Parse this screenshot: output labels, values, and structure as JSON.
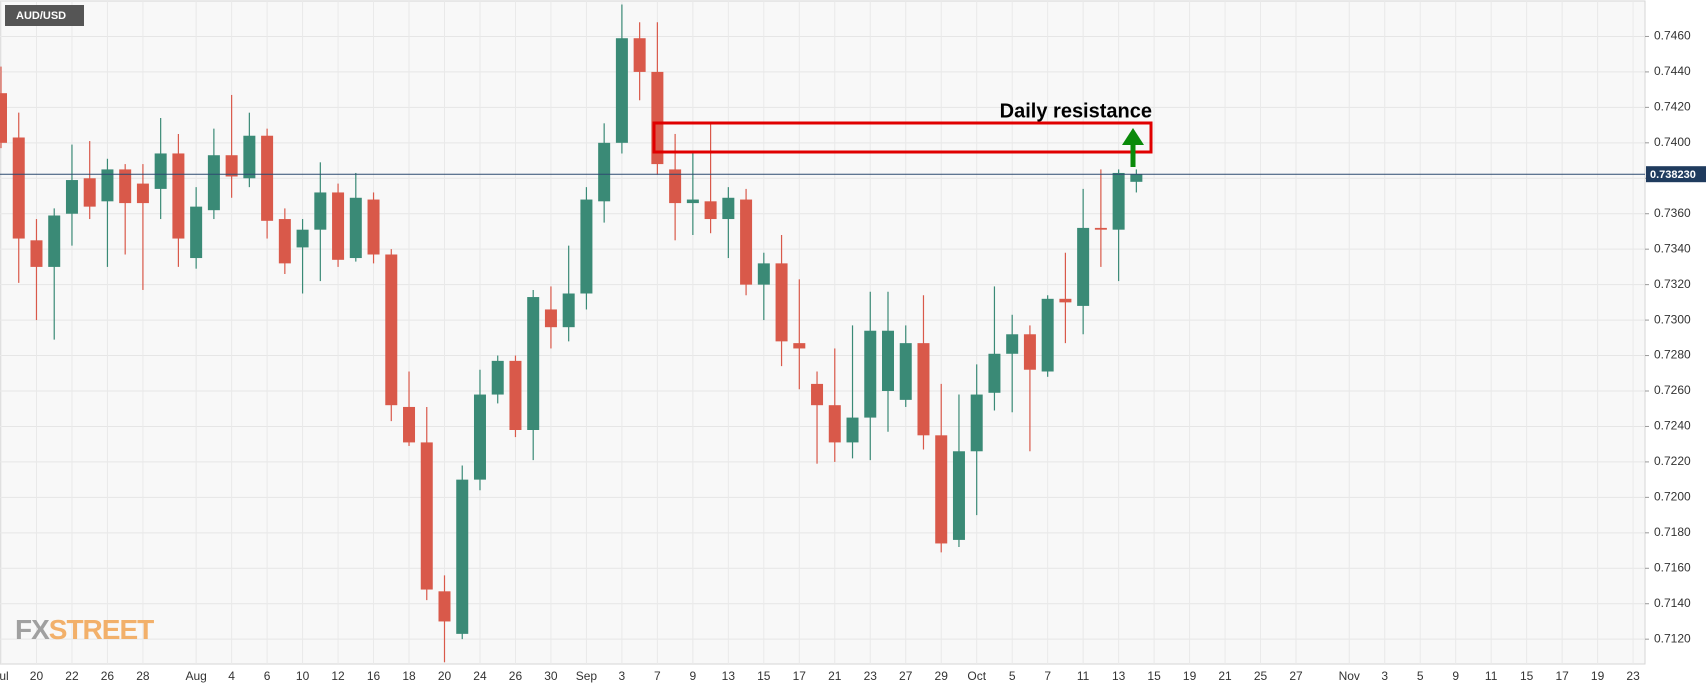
{
  "chart_data": {
    "type": "candlestick",
    "symbol": "AUD/USD",
    "annotation": "Daily resistance",
    "watermark": [
      "FX",
      "STREET"
    ],
    "up_color": "#3a8a76",
    "down_color": "#d9594a",
    "grid": true,
    "categories": [
      "Jul",
      null,
      "20",
      null,
      "22",
      null,
      "26",
      null,
      "28",
      null,
      null,
      "Aug",
      null,
      "4",
      null,
      "6",
      null,
      "10",
      null,
      "12",
      null,
      "16",
      null,
      "18",
      null,
      "20",
      null,
      "24",
      null,
      "26",
      null,
      "30",
      null,
      "Sep",
      null,
      "3",
      null,
      "7",
      null,
      "9",
      null,
      "13",
      null,
      "15",
      null,
      "17",
      null,
      "21",
      null,
      "23",
      null,
      "27",
      null,
      "29",
      null,
      "Oct",
      null,
      "5",
      null,
      "7",
      null,
      "11",
      null,
      "13",
      null,
      "15",
      null,
      "19",
      null,
      "21",
      null,
      "25",
      null,
      "27",
      null,
      null,
      "Nov",
      null,
      "3",
      null,
      "5",
      null,
      "9",
      null,
      "11",
      null,
      "15",
      null,
      "17",
      null,
      "19",
      null,
      "23"
    ],
    "open": [
      0.7428,
      0.7403,
      0.7345,
      0.733,
      0.736,
      0.738,
      0.7367,
      0.7385,
      0.7377,
      0.7374,
      0.7394,
      0.7335,
      0.7362,
      0.7393,
      0.738,
      0.7404,
      0.7357,
      0.7341,
      0.7351,
      0.7372,
      0.7335,
      0.7368,
      0.7337,
      0.7251,
      0.7231,
      0.7147,
      0.7123,
      0.721,
      0.7258,
      0.7277,
      0.7238,
      0.7306,
      0.7296,
      0.7315,
      0.7367,
      0.74,
      0.7459,
      0.744,
      0.7385,
      0.7366,
      0.7367,
      0.7357,
      0.7368,
      0.732,
      0.7332,
      0.7287,
      0.7264,
      0.7252,
      0.7231,
      0.7245,
      0.726,
      0.7255,
      0.7287,
      0.7235,
      0.7176,
      0.7226,
      0.7259,
      0.7281,
      0.7292,
      0.7271,
      0.7312,
      0.7308,
      0.7352,
      0.7351,
      0.7378,
      null,
      null,
      null,
      null,
      null,
      null,
      null,
      null,
      null,
      null,
      null,
      null,
      null,
      null,
      null,
      null,
      null,
      null,
      null,
      null,
      null,
      null,
      null,
      null,
      null,
      null,
      null,
      null
    ],
    "high": [
      0.7443,
      0.7417,
      0.7357,
      0.7363,
      0.7399,
      0.7401,
      0.7391,
      0.7388,
      0.7388,
      0.7414,
      0.7405,
      0.7375,
      0.7408,
      0.7427,
      0.7417,
      0.7408,
      0.7363,
      0.7357,
      0.7389,
      0.7377,
      0.7383,
      0.7372,
      0.734,
      0.7271,
      0.7251,
      0.7156,
      0.7218,
      0.7272,
      0.728,
      0.728,
      0.7317,
      0.7319,
      0.7342,
      0.7375,
      0.7411,
      0.7478,
      0.7468,
      0.7468,
      0.7405,
      0.7394,
      0.7411,
      0.7375,
      0.7374,
      0.7338,
      0.7348,
      0.7323,
      0.7271,
      0.7284,
      0.7297,
      0.7316,
      0.7316,
      0.7297,
      0.7314,
      0.7264,
      0.7258,
      0.7275,
      0.7319,
      0.7303,
      0.7297,
      0.7314,
      0.7338,
      0.7374,
      0.7385,
      0.7385,
      0.7385,
      null,
      null,
      null,
      null,
      null,
      null,
      null,
      null,
      null,
      null,
      null,
      null,
      null,
      null,
      null,
      null,
      null,
      null,
      null,
      null,
      null,
      null,
      null,
      null,
      null,
      null,
      null,
      null
    ],
    "low": [
      0.7397,
      0.7321,
      0.73,
      0.7289,
      0.7342,
      0.7357,
      0.733,
      0.7337,
      0.7317,
      0.7357,
      0.733,
      0.7329,
      0.7357,
      0.7369,
      0.7375,
      0.7346,
      0.7326,
      0.7315,
      0.7322,
      0.733,
      0.7333,
      0.7332,
      0.7243,
      0.7229,
      0.7142,
      0.7107,
      0.712,
      0.7204,
      0.7253,
      0.7234,
      0.7221,
      0.7284,
      0.7288,
      0.7306,
      0.7355,
      0.7394,
      0.7424,
      0.7382,
      0.7345,
      0.7348,
      0.7349,
      0.7335,
      0.7314,
      0.73,
      0.7274,
      0.7261,
      0.7219,
      0.722,
      0.7222,
      0.7221,
      0.7237,
      0.7251,
      0.7227,
      0.7169,
      0.7172,
      0.719,
      0.7249,
      0.7248,
      0.7226,
      0.7268,
      0.7287,
      0.7292,
      0.733,
      0.7322,
      0.7372,
      null,
      null,
      null,
      null,
      null,
      null,
      null,
      null,
      null,
      null,
      null,
      null,
      null,
      null,
      null,
      null,
      null,
      null,
      null,
      null,
      null,
      null,
      null,
      null,
      null,
      null,
      null,
      null
    ],
    "close": [
      0.74,
      0.7346,
      0.733,
      0.7359,
      0.7379,
      0.7364,
      0.7385,
      0.7366,
      0.7366,
      0.7394,
      0.7346,
      0.7364,
      0.7393,
      0.7381,
      0.7404,
      0.7356,
      0.7332,
      0.7351,
      0.7372,
      0.7334,
      0.7369,
      0.7337,
      0.7252,
      0.7231,
      0.7148,
      0.713,
      0.721,
      0.7258,
      0.7277,
      0.7238,
      0.7313,
      0.7296,
      0.7315,
      0.7368,
      0.74,
      0.7459,
      0.744,
      0.7388,
      0.7366,
      0.7368,
      0.7357,
      0.7369,
      0.732,
      0.7332,
      0.7288,
      0.7284,
      0.7252,
      0.7231,
      0.7245,
      0.7294,
      0.7294,
      0.7287,
      0.7235,
      0.7174,
      0.7226,
      0.7258,
      0.7281,
      0.7292,
      0.7272,
      0.7312,
      0.731,
      0.7352,
      0.7351,
      0.7383,
      0.73823,
      null,
      null,
      null,
      null,
      null,
      null,
      null,
      null,
      null,
      null,
      null,
      null,
      null,
      null,
      null,
      null,
      null,
      null,
      null,
      null,
      null,
      null,
      null,
      null,
      null,
      null,
      null,
      null
    ],
    "last_price": {
      "value": 0.73823,
      "label": "0.738230"
    },
    "ylim": [
      0.7106,
      0.748
    ],
    "yticks": [
      {
        "value": 0.712,
        "label": "0.7120"
      },
      {
        "value": 0.714,
        "label": "0.7140"
      },
      {
        "value": 0.716,
        "label": "0.7160"
      },
      {
        "value": 0.718,
        "label": "0.7180"
      },
      {
        "value": 0.72,
        "label": "0.7200"
      },
      {
        "value": 0.722,
        "label": "0.7220"
      },
      {
        "value": 0.724,
        "label": "0.7240"
      },
      {
        "value": 0.726,
        "label": "0.7260"
      },
      {
        "value": 0.728,
        "label": "0.7280"
      },
      {
        "value": 0.73,
        "label": "0.7300"
      },
      {
        "value": 0.732,
        "label": "0.7320"
      },
      {
        "value": 0.734,
        "label": "0.7340"
      },
      {
        "value": 0.736,
        "label": "0.7360"
      },
      {
        "value": 0.738,
        "label": "0.7380"
      },
      {
        "value": 0.74,
        "label": "0.7400"
      },
      {
        "value": 0.742,
        "label": "0.7420"
      },
      {
        "value": 0.744,
        "label": "0.7440"
      },
      {
        "value": 0.746,
        "label": "0.7460"
      }
    ]
  }
}
